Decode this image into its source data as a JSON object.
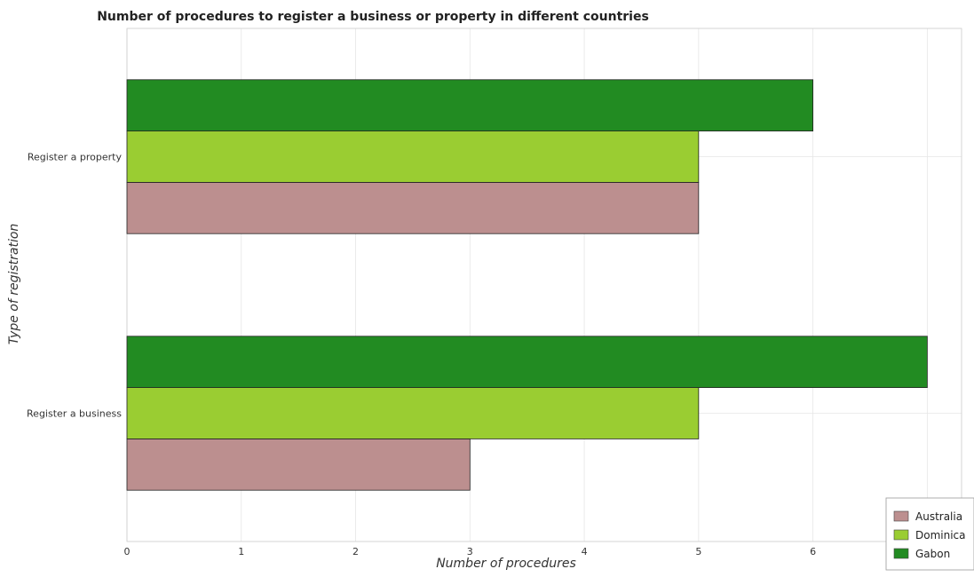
{
  "chart_data": {
    "type": "bar",
    "orientation": "horizontal",
    "title": "Number of procedures to register a business or property in different countries",
    "xlabel": "Number of procedures",
    "ylabel": "Type of registration",
    "categories": [
      "Register a business",
      "Register a property"
    ],
    "series": [
      {
        "name": "Australia",
        "color": "#bc8f8f",
        "values": [
          3,
          5
        ]
      },
      {
        "name": "Dominica",
        "color": "#9acd32",
        "values": [
          5,
          5
        ]
      },
      {
        "name": "Gabon",
        "color": "#228b22",
        "values": [
          7,
          6
        ]
      }
    ],
    "xlim": [
      0,
      7.3
    ],
    "xticks": [
      0,
      1,
      2,
      3,
      4,
      5,
      6,
      7
    ],
    "grid": true,
    "legend_position": "bottom-right"
  }
}
